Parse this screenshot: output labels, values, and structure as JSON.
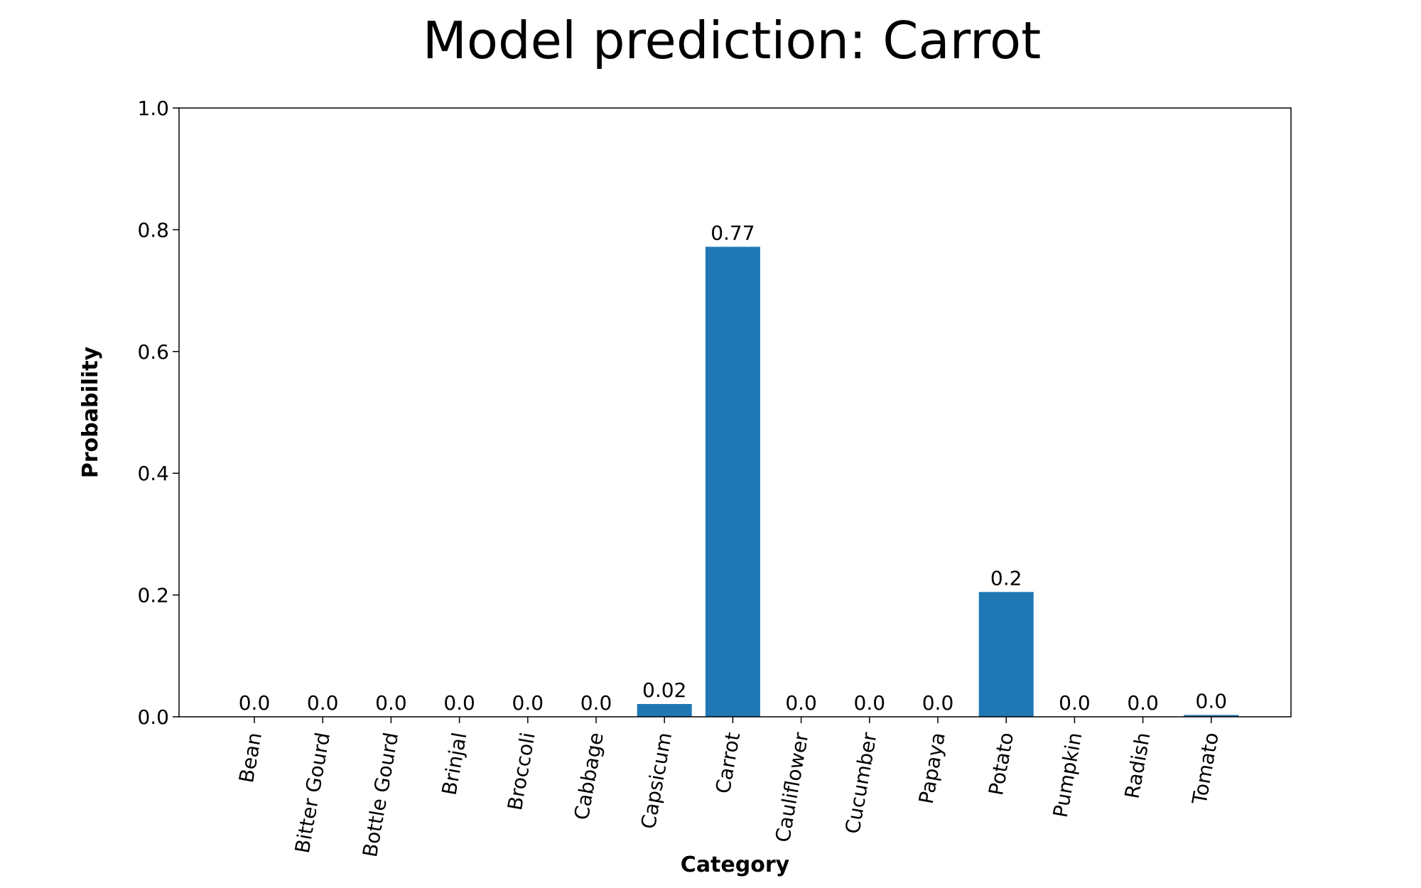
{
  "chart_data": {
    "type": "bar",
    "title": "Model prediction: Carrot",
    "xlabel": "Category",
    "ylabel": "Probability",
    "ylim": [
      0,
      1.0
    ],
    "yticks": [
      "0.0",
      "0.2",
      "0.4",
      "0.6",
      "0.8",
      "1.0"
    ],
    "categories": [
      "Bean",
      "Bitter Gourd",
      "Bottle Gourd",
      "Brinjal",
      "Broccoli",
      "Cabbage",
      "Capsicum",
      "Carrot",
      "Cauliflower",
      "Cucumber",
      "Papaya",
      "Potato",
      "Pumpkin",
      "Radish",
      "Tomato"
    ],
    "values": [
      0.0,
      0.0,
      0.0,
      0.0,
      0.0,
      0.0,
      0.021,
      0.772,
      0.0,
      0.0,
      0.0,
      0.205,
      0.0,
      0.0,
      0.003
    ],
    "value_labels": [
      "0.0",
      "0.0",
      "0.0",
      "0.0",
      "0.0",
      "0.0",
      "0.02",
      "0.77",
      "0.0",
      "0.0",
      "0.0",
      "0.2",
      "0.0",
      "0.0",
      "0.0"
    ],
    "bar_color": "#1f77b4",
    "grid": false,
    "legend": "none"
  }
}
